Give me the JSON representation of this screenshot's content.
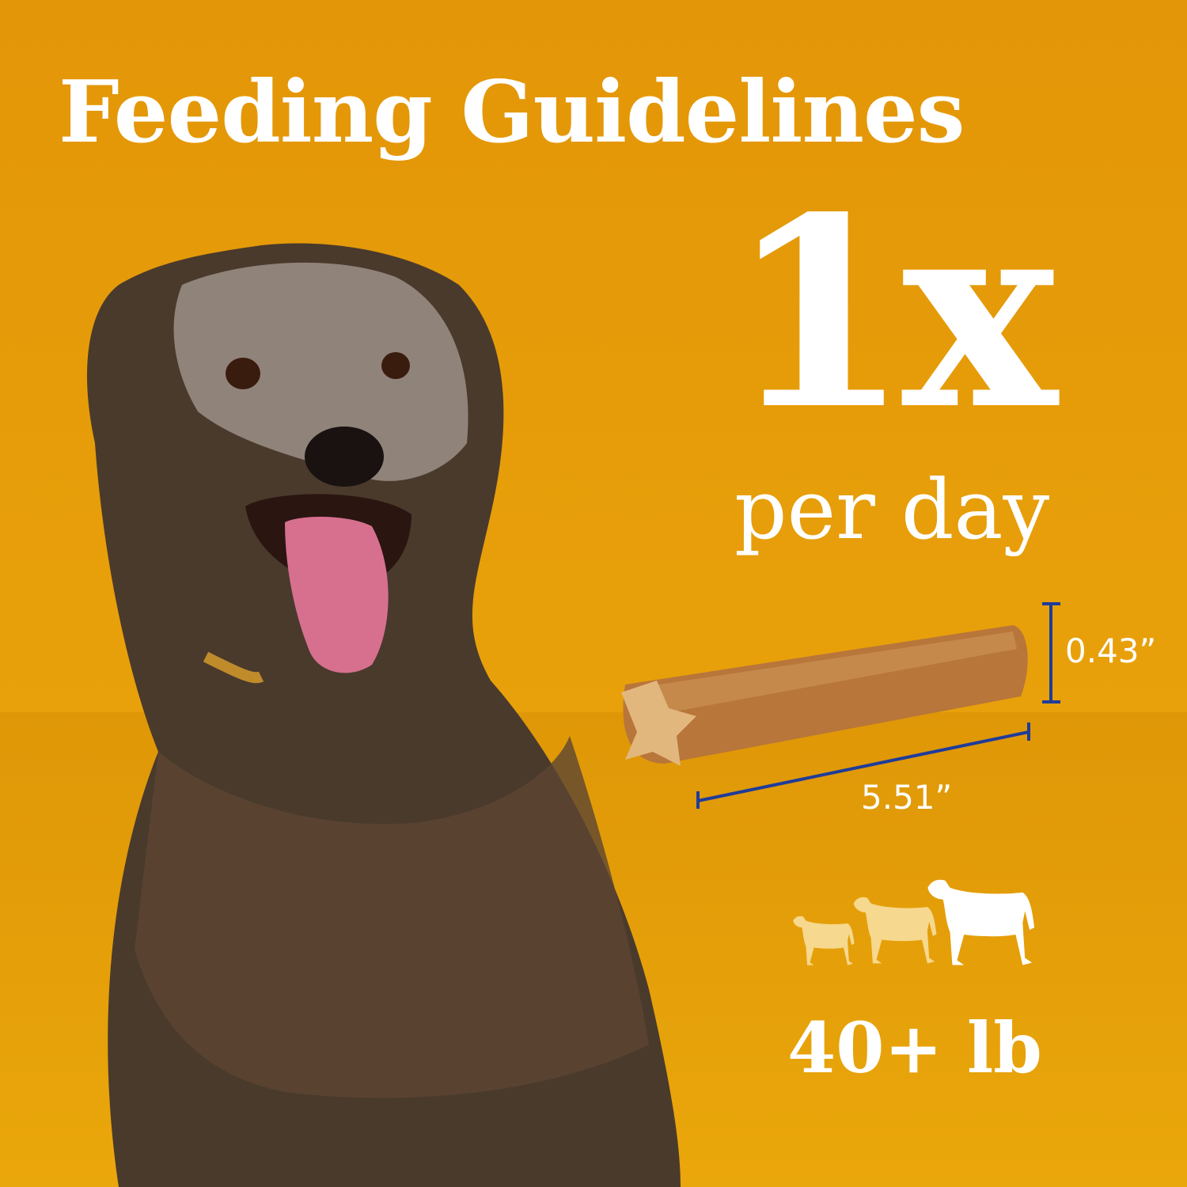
{
  "title": "Feeding Guidelines",
  "frequency": {
    "count": "1x",
    "unit": "per day"
  },
  "treat": {
    "height": "0.43”",
    "length": "5.51”"
  },
  "dog_size": {
    "label": "40+ lb",
    "icons": [
      "small-dog-icon",
      "medium-dog-icon",
      "large-dog-icon"
    ],
    "highlighted": "large-dog-icon"
  },
  "colors": {
    "background": "#E59A0A",
    "text": "#FFFFFF",
    "dimension_line": "#1F3C9A",
    "dog_icon_dim": "#F6D88E"
  }
}
